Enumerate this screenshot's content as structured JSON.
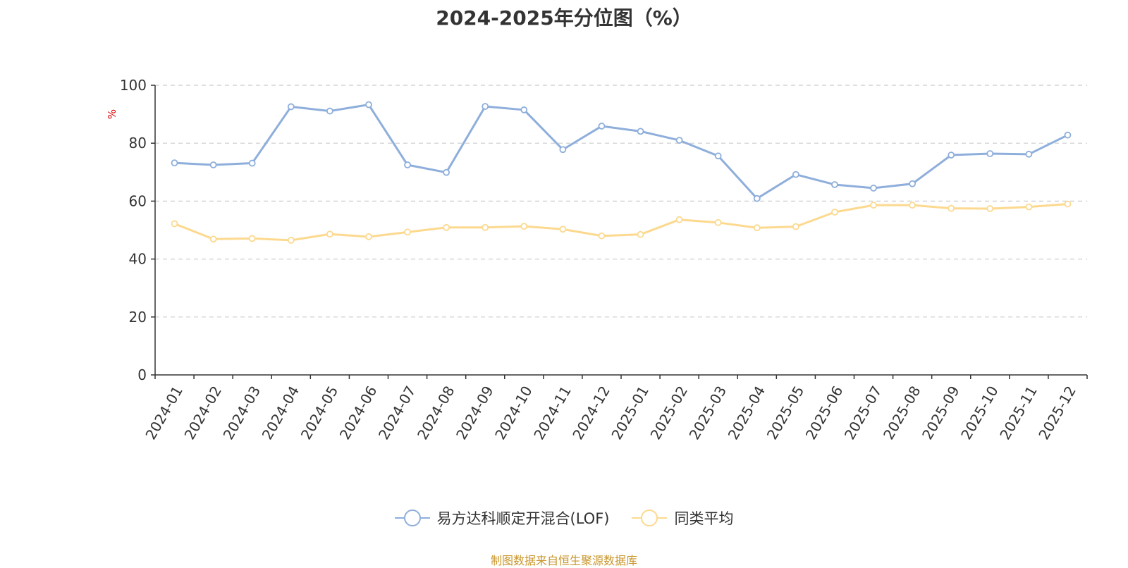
{
  "colors": {
    "series1": "#8eaedb",
    "series2": "#fcd98f",
    "grid": "#cccccc",
    "axis": "#333333"
  },
  "source_note": "制图数据来自恒生聚源数据库",
  "chart_data": {
    "type": "line",
    "title": "2024-2025年分位图（%）",
    "ylabel": "%",
    "xlabel": "",
    "ylim": [
      0,
      100
    ],
    "y_ticks": [
      0,
      20,
      40,
      60,
      80,
      100
    ],
    "grid": true,
    "legend_position": "bottom-center",
    "x": [
      "2024-01",
      "2024-02",
      "2024-03",
      "2024-04",
      "2024-05",
      "2024-06",
      "2024-07",
      "2024-08",
      "2024-09",
      "2024-10",
      "2024-11",
      "2024-12",
      "2025-01",
      "2025-02",
      "2025-03",
      "2025-04",
      "2025-05",
      "2025-06",
      "2025-07",
      "2025-08",
      "2025-09",
      "2025-10",
      "2025-11",
      "2025-12"
    ],
    "series": [
      {
        "name": "易方达科顺定开混合(LOF)",
        "values": [
          73.2,
          72.5,
          73.1,
          92.6,
          91.1,
          93.3,
          72.5,
          69.9,
          92.7,
          91.5,
          77.8,
          85.9,
          84.1,
          81.0,
          75.6,
          60.9,
          69.2,
          65.7,
          64.5,
          66.0,
          75.9,
          76.4,
          76.2,
          82.8
        ]
      },
      {
        "name": "同类平均",
        "values": [
          52.2,
          46.9,
          47.1,
          46.5,
          48.6,
          47.7,
          49.3,
          50.9,
          50.9,
          51.3,
          50.3,
          48.0,
          48.5,
          53.6,
          52.6,
          50.8,
          51.2,
          56.2,
          58.6,
          58.6,
          57.5,
          57.4,
          58.0,
          59.0
        ]
      }
    ]
  }
}
